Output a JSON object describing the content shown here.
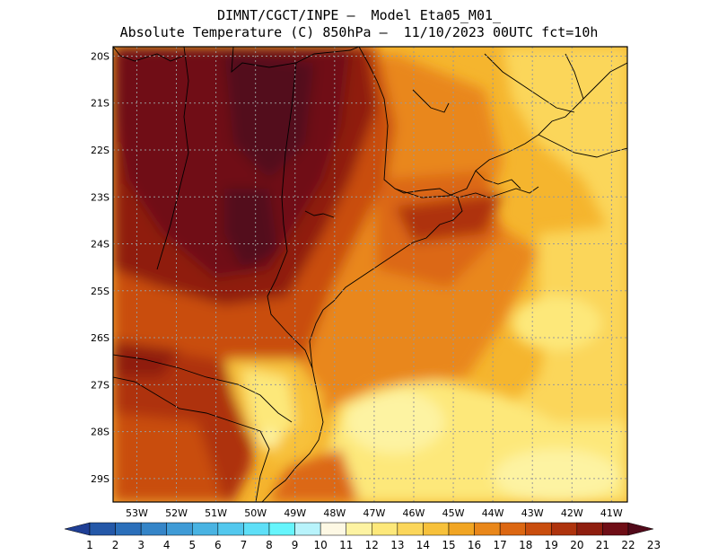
{
  "header": {
    "line1": "DIMNT/CGCT/INPE –  Model Eta05_M01_",
    "line2": "Absolute Temperature (C) 850hPa –  11/10/2023 00UTC fct=10h"
  },
  "map": {
    "lat_labels": [
      "20S",
      "21S",
      "22S",
      "23S",
      "24S",
      "25S",
      "26S",
      "27S",
      "28S",
      "29S"
    ],
    "lon_labels": [
      "53W",
      "52W",
      "51W",
      "50W",
      "49W",
      "48W",
      "47W",
      "46W",
      "45W",
      "44W",
      "43W",
      "42W",
      "41W"
    ],
    "lat_range": [
      -29.5,
      -19.8
    ],
    "lon_range": [
      -53.6,
      -40.6
    ],
    "grid": true
  },
  "colorbar": {
    "labels": [
      "1",
      "2",
      "3",
      "4",
      "5",
      "6",
      "7",
      "8",
      "9",
      "10",
      "11",
      "12",
      "13",
      "14",
      "15",
      "16",
      "17",
      "18",
      "19",
      "20",
      "21",
      "22",
      "23"
    ],
    "colors": [
      "#1f3f95",
      "#2458a8",
      "#2b6fba",
      "#3585c8",
      "#3f9bd6",
      "#49b3e2",
      "#53c8ee",
      "#5edff7",
      "#66f5fc",
      "#b8f3fb",
      "#fdf8e4",
      "#fdf3a2",
      "#fde87a",
      "#fbd65a",
      "#f7c13b",
      "#f1a523",
      "#e9871a",
      "#dc6712",
      "#c94d0e",
      "#ae330d",
      "#8f1e0f",
      "#6f0e16",
      "#520a1a"
    ]
  }
}
